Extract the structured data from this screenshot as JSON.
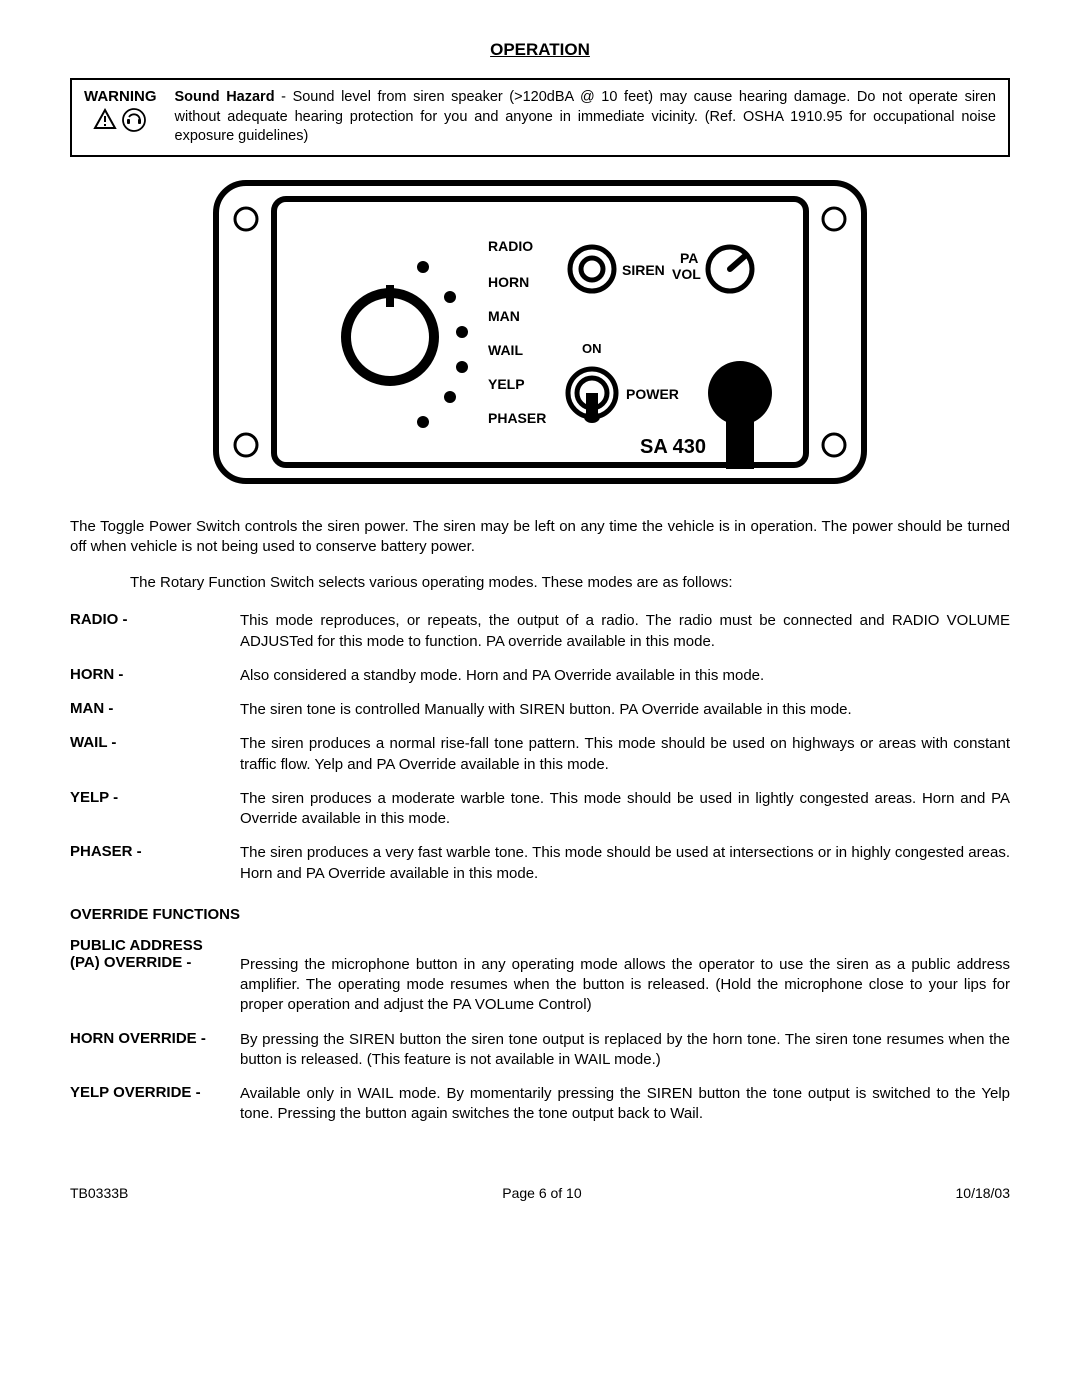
{
  "title": "OPERATION",
  "warning": {
    "label": "WARNING",
    "bold_lead": "Sound Hazard",
    "text": " - Sound level from siren speaker (>120dBA @ 10 feet) may cause hearing damage. Do not operate siren without adequate hearing protection for you and anyone in immediate vicinity. (Ref. OSHA 1910.95 for occupational noise exposure guidelines)"
  },
  "panel": {
    "modes": [
      "RADIO",
      "HORN",
      "MAN",
      "WAIL",
      "YELP",
      "PHASER"
    ],
    "siren_label": "SIREN",
    "pa_vol_label_line1": "PA",
    "pa_vol_label_line2": "VOL",
    "on_label": "ON",
    "power_label": "POWER",
    "model": "SA 430"
  },
  "intro1": "The Toggle Power Switch controls the siren power.  The siren may be left on any time the vehicle is in operation.  The power should be turned off when vehicle is not being used to conserve battery power.",
  "intro2": "The Rotary Function Switch selects various operating modes. These modes are as follows:",
  "modes": [
    {
      "label": "RADIO -",
      "desc": "This mode reproduces, or repeats, the output of a radio.  The radio must be connected and RADIO VOLUME ADJUSTed for this mode to function.  PA override available in this mode."
    },
    {
      "label": "HORN -",
      "desc": "Also considered a standby mode.  Horn and PA Override available in this mode."
    },
    {
      "label": "MAN -",
      "desc": "The siren tone is controlled Manually with SIREN button.  PA Override available in this mode."
    },
    {
      "label": "WAIL -",
      "desc": "The siren produces a normal rise-fall tone pattern.  This mode should be used on highways or areas with constant traffic flow.  Yelp and PA Override available in this mode."
    },
    {
      "label": "YELP -",
      "desc": "The siren produces a moderate warble tone.  This mode should be used in lightly congested areas.  Horn and PA Override available in this mode."
    },
    {
      "label": "PHASER -",
      "desc": "The siren produces a very fast warble tone.  This mode should be used at intersections or in highly congested areas.  Horn and PA Override available in this mode."
    }
  ],
  "override_title": "OVERRIDE FUNCTIONS",
  "overrides": [
    {
      "label_line1": "PUBLIC ADDRESS",
      "label_line2": "(PA) OVERRIDE -",
      "desc": "Pressing the microphone button in any operating mode allows the operator to use the siren as a public address amplifier.  The operating mode resumes when the button is released.  (Hold the microphone close to your lips for proper operation and adjust the PA VOLume Control)",
      "class": "pa"
    },
    {
      "label_line1": "HORN OVERRIDE",
      "label_line2": " -",
      "inline": true,
      "desc": "By pressing the SIREN button the siren tone output is replaced by the horn tone.  The siren tone resumes when the button is released.  (This feature is not available in WAIL mode.)"
    },
    {
      "label_line1": "YELP OVERRIDE -",
      "label_line2": "",
      "desc": "Available only in WAIL mode.  By momentarily pressing the SIREN button the tone output is switched to the Yelp tone.  Pressing the button again switches the tone output back to Wail."
    }
  ],
  "footer": {
    "left": "TB0333B",
    "center": "Page 6 of 10",
    "right": "10/18/03"
  },
  "colors": {
    "text": "#000000",
    "bg": "#ffffff",
    "border": "#000000"
  }
}
